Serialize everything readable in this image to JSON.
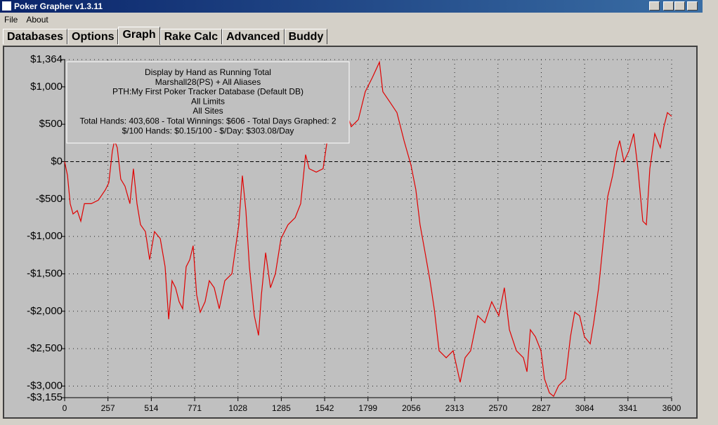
{
  "window": {
    "title": "Poker Grapher v1.3.11"
  },
  "menu": [
    "File",
    "About"
  ],
  "tabs": [
    "Databases",
    "Options",
    "Graph",
    "Rake Calc",
    "Advanced",
    "Buddy"
  ],
  "chart_data": {
    "type": "line",
    "annotations": [
      "Display by Hand as Running Total",
      "Marshall28(PS) + All Aliases",
      "PTH:My First Poker Tracker Database (Default DB)",
      "All Limits",
      "All Sites",
      "Total Hands: 403,608 - Total Winnings: $606 - Total Days Graphed: 2",
      "$/100 Hands: $0.15/100 - $/Day: $303.08/Day"
    ],
    "x": [
      0,
      17,
      33,
      50,
      75,
      96,
      117,
      158,
      200,
      242,
      262,
      283,
      296,
      312,
      333,
      358,
      387,
      408,
      429,
      450,
      479,
      504,
      533,
      567,
      596,
      617,
      637,
      658,
      679,
      700,
      721,
      742,
      762,
      783,
      804,
      833,
      858,
      887,
      917,
      950,
      992,
      1033,
      1054,
      1075,
      1096,
      1125,
      1150,
      1167,
      1192,
      1221,
      1250,
      1283,
      1325,
      1367,
      1400,
      1429,
      1450,
      1492,
      1533,
      1554,
      1596,
      1658,
      1700,
      1742,
      1783,
      1825,
      1867,
      1887,
      1929,
      1971,
      2013,
      2054,
      2083,
      2108,
      2138,
      2167,
      2192,
      2221,
      2263,
      2304,
      2346,
      2375,
      2408,
      2450,
      2492,
      2533,
      2575,
      2608,
      2638,
      2679,
      2721,
      2742,
      2762,
      2792,
      2825,
      2846,
      2875,
      2900,
      2929,
      2971,
      3000,
      3025,
      3054,
      3083,
      3117,
      3138,
      3167,
      3192,
      3221,
      3250,
      3275,
      3292,
      3317,
      3346,
      3375,
      3400,
      3429,
      3450,
      3471,
      3500,
      3533,
      3554,
      3575,
      3600
    ],
    "values": [
      0,
      -187,
      -562,
      -700,
      -655,
      -796,
      -562,
      -562,
      -515,
      -375,
      -281,
      140,
      281,
      187,
      -234,
      -328,
      -562,
      -94,
      -562,
      -843,
      -936,
      -1311,
      -936,
      -1030,
      -1405,
      -2107,
      -1592,
      -1686,
      -1873,
      -1967,
      -1405,
      -1311,
      -1124,
      -1779,
      -2013,
      -1873,
      -1592,
      -1686,
      -1967,
      -1592,
      -1498,
      -843,
      -187,
      -655,
      -1405,
      -2060,
      -2322,
      -1779,
      -1217,
      -1686,
      -1498,
      -1030,
      -843,
      -749,
      -562,
      94,
      -94,
      -140,
      -94,
      234,
      749,
      749,
      468,
      562,
      936,
      1124,
      1330,
      936,
      796,
      655,
      281,
      -47,
      -375,
      -843,
      -1217,
      -1592,
      -1967,
      -2528,
      -2622,
      -2528,
      -2950,
      -2622,
      -2528,
      -2060,
      -2154,
      -1873,
      -2060,
      -1686,
      -2247,
      -2528,
      -2622,
      -2809,
      -2247,
      -2341,
      -2528,
      -2903,
      -3090,
      -3137,
      -2996,
      -2903,
      -2341,
      -2013,
      -2060,
      -2341,
      -2435,
      -2154,
      -1686,
      -1124,
      -468,
      -187,
      140,
      281,
      0,
      140,
      375,
      -94,
      -796,
      -843,
      -94,
      375,
      187,
      468,
      655,
      606
    ],
    "color": "#e00000",
    "xlim": [
      0,
      3600
    ],
    "xticks": [
      0,
      257,
      514,
      771,
      1028,
      1285,
      1542,
      1799,
      2056,
      2313,
      2570,
      2827,
      3084,
      3341,
      3600
    ],
    "ylim": [
      -3155,
      1364
    ],
    "yticks": [
      {
        "value": 1364,
        "label": "$1,364"
      },
      {
        "value": 1000,
        "label": "$1,000"
      },
      {
        "value": 500,
        "label": "$500"
      },
      {
        "value": 0,
        "label": "$0"
      },
      {
        "value": -500,
        "label": "-$500"
      },
      {
        "value": -1000,
        "label": "-$1,000"
      },
      {
        "value": -1500,
        "label": "-$1,500"
      },
      {
        "value": -2000,
        "label": "-$2,000"
      },
      {
        "value": -2500,
        "label": "-$2,500"
      },
      {
        "value": -3000,
        "label": "-$3,000"
      },
      {
        "value": -3155,
        "label": "-$3,155"
      }
    ],
    "grid": true
  }
}
